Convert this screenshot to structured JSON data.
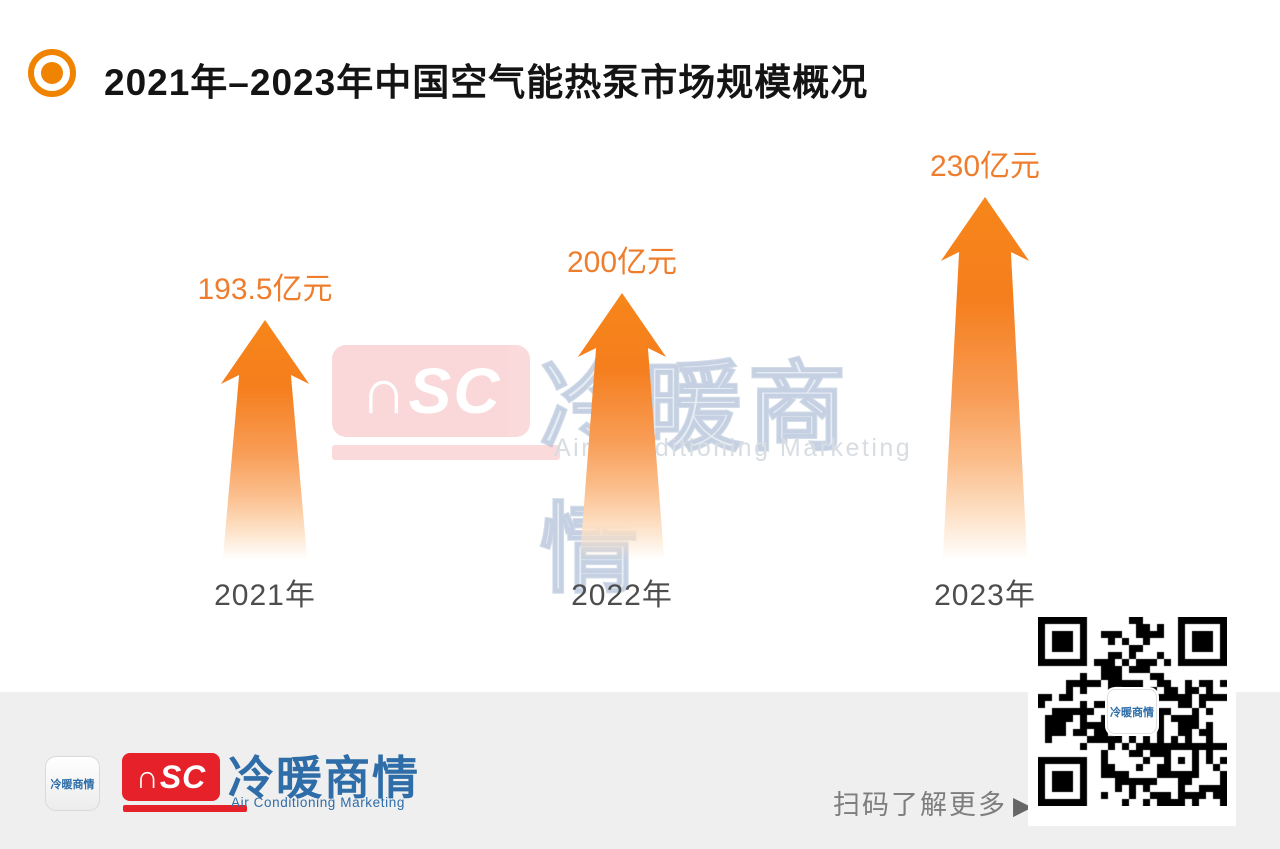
{
  "header": {
    "title": "2021年–2023年中国空气能热泵市场规模概况"
  },
  "chart_data": {
    "type": "bar",
    "style": "gradient-up-arrow-pictograph",
    "title": "2021年–2023年中国空气能热泵市场规模概况",
    "categories": [
      "2021年",
      "2022年",
      "2023年"
    ],
    "values": [
      193.5,
      200,
      230
    ],
    "unit": "亿元",
    "value_labels": [
      "193.5亿元",
      "200亿元",
      "230亿元"
    ],
    "accent_color": "#F58220",
    "value_label_color": "#EE7E2E",
    "category_label_color": "#4D4D4D",
    "grid": false,
    "axes_shown": false
  },
  "watermark": {
    "nsc_text": "∩SC",
    "cn_text": "冷暖商情",
    "en_text": "Air Conditioning Marketing"
  },
  "footer": {
    "app_icon_text": "冷暖商情",
    "nsc_logo_text": "∩SC",
    "brand_cn": "冷暖商情",
    "brand_en": "Air Conditioning Marketing",
    "scan_cta": "扫码了解更多",
    "scan_cta_arrow": "▶",
    "qr_center_text": "冷暖商情",
    "footer_bg_color": "#EFEFEF",
    "brand_red": "#E62129",
    "brand_blue": "#2E6DA8"
  }
}
